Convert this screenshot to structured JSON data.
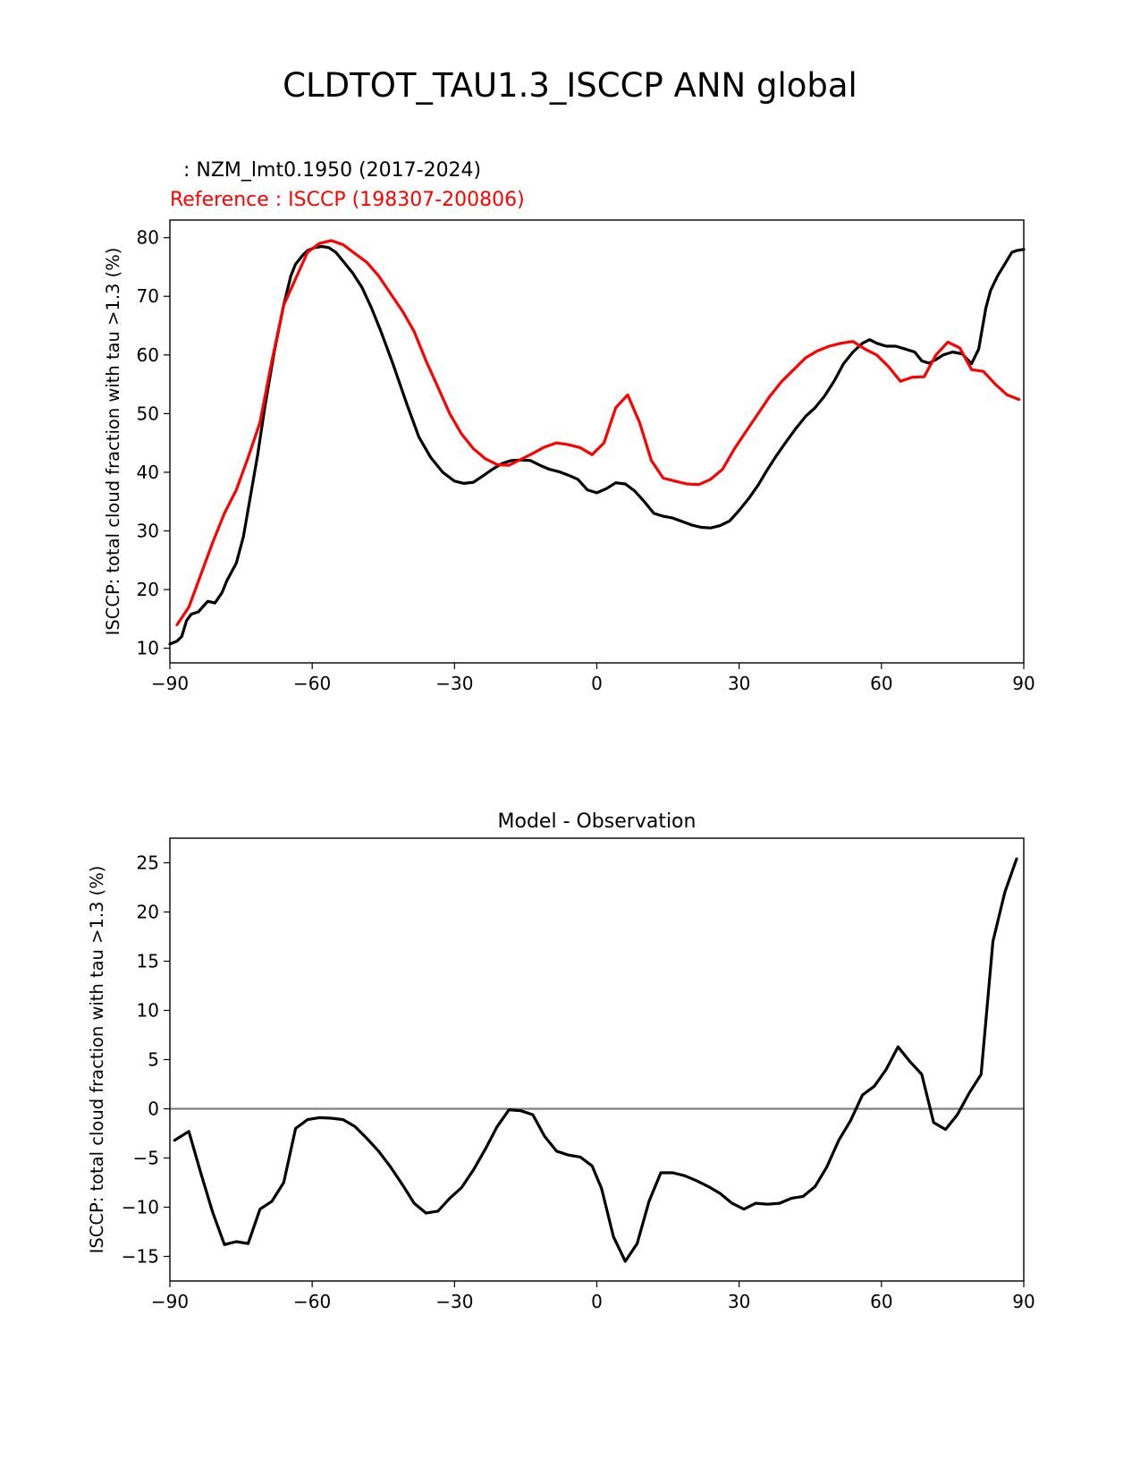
{
  "figure": {
    "suptitle": "CLDTOT_TAU1.3_ISCCP ANN global"
  },
  "chart_data": [
    {
      "type": "line",
      "title_test": ": NZM_lmt0.1950 (2017-2024)",
      "title_ref": "Reference : ISCCP (198307-200806)",
      "xlabel": "",
      "ylabel": "ISCCP: total cloud fraction with tau >1.3 (%)",
      "xlim": [
        -90,
        90
      ],
      "ylim": [
        7.5,
        83
      ],
      "xticks": [
        -90,
        -60,
        -30,
        0,
        30,
        60,
        90
      ],
      "xtick_labels": [
        "−90",
        "−60",
        "−30",
        "0",
        "30",
        "60",
        "90"
      ],
      "yticks": [
        10,
        20,
        30,
        40,
        50,
        60,
        70,
        80
      ],
      "ytick_labels": [
        "10",
        "20",
        "30",
        "40",
        "50",
        "60",
        "70",
        "80"
      ],
      "colors": {
        "test": "#000000",
        "ref": "#ff0000"
      },
      "series": [
        {
          "name": "test",
          "x": [
            -90,
            -88.5,
            -87.5,
            -86.5,
            -85.5,
            -84,
            -82,
            -80.5,
            -79,
            -78,
            -76,
            -74.5,
            -73,
            -71.5,
            -70,
            -68,
            -66,
            -64.5,
            -63.5,
            -62,
            -61,
            -59.5,
            -58,
            -56.5,
            -55,
            -53.5,
            -51.5,
            -49.5,
            -47.5,
            -45.5,
            -43,
            -40,
            -37.5,
            -35,
            -32.5,
            -30,
            -28,
            -26,
            -24,
            -22,
            -20,
            -18,
            -16,
            -14,
            -12,
            -10,
            -8,
            -6,
            -4,
            -2,
            0,
            2,
            4,
            6,
            8,
            10,
            12,
            14,
            16,
            18,
            20,
            22,
            24,
            26,
            28,
            30,
            32,
            34,
            36,
            38,
            40,
            42,
            44,
            46,
            48,
            50,
            52,
            54,
            56,
            57.5,
            59,
            61,
            63,
            65,
            67,
            68.5,
            70,
            71.5,
            73,
            75,
            77,
            79,
            80.5,
            82,
            83,
            84.5,
            86,
            87.5,
            88.5,
            90
          ],
          "y": [
            10.7,
            11.2,
            12,
            14.7,
            15.8,
            16.2,
            18,
            17.7,
            19.5,
            21.5,
            24.5,
            29,
            36,
            43,
            51,
            60.5,
            68.5,
            73.5,
            75.5,
            77,
            77.8,
            78.3,
            78.5,
            78.3,
            77.5,
            76,
            74,
            71.5,
            68,
            64,
            58.5,
            51.5,
            46,
            42.5,
            40,
            38.5,
            38.1,
            38.3,
            39.4,
            40.5,
            41.5,
            42,
            42.1,
            42,
            41.2,
            40.5,
            40.1,
            39.5,
            38.8,
            37,
            36.5,
            37.2,
            38.2,
            38,
            36.8,
            35,
            33,
            32.5,
            32.2,
            31.6,
            31,
            30.6,
            30.5,
            30.9,
            31.7,
            33.5,
            35.5,
            37.8,
            40.5,
            43,
            45.3,
            47.5,
            49.5,
            51,
            53,
            55.5,
            58.5,
            60.5,
            62,
            62.6,
            62,
            61.5,
            61.5,
            61,
            60.5,
            59,
            58.6,
            59.2,
            60,
            60.5,
            60.2,
            58.5,
            61,
            68,
            71,
            73.5,
            75.5,
            77.5,
            77.8,
            78
          ]
        },
        {
          "name": "ref",
          "x": [
            -88.5,
            -86,
            -83.5,
            -81,
            -78.5,
            -76,
            -73.5,
            -71,
            -68.5,
            -66,
            -63.5,
            -61,
            -58.5,
            -56,
            -53.5,
            -51,
            -48.5,
            -46,
            -43.5,
            -41,
            -38.5,
            -36,
            -33.5,
            -31,
            -28.5,
            -26,
            -23.5,
            -21,
            -18.5,
            -16,
            -13.5,
            -11,
            -8.5,
            -6,
            -3.5,
            -1,
            1.5,
            4,
            6.5,
            9,
            11.5,
            14,
            16.5,
            19,
            21.5,
            24,
            26.5,
            29,
            31.5,
            34,
            36.5,
            39,
            41.5,
            44,
            46.5,
            49,
            51.5,
            54,
            56.5,
            59,
            61.5,
            64,
            66.5,
            69,
            71.5,
            74,
            76.5,
            79,
            81.5,
            84,
            86.5,
            89
          ],
          "y": [
            14,
            17,
            22.5,
            28,
            33,
            37,
            42.5,
            48.5,
            59,
            68.5,
            73,
            77.5,
            79,
            79.5,
            78.8,
            77.3,
            75.8,
            73.5,
            70.5,
            67.5,
            64,
            59,
            54.5,
            50,
            46.5,
            44,
            42.3,
            41.3,
            41.2,
            42.2,
            43.2,
            44.3,
            45,
            44.7,
            44.2,
            43,
            45,
            51,
            53.2,
            48.5,
            42,
            39,
            38.5,
            38,
            37.9,
            38.8,
            40.5,
            44,
            47,
            50,
            53,
            55.5,
            57.5,
            59.5,
            60.7,
            61.5,
            62,
            62.3,
            61,
            60,
            58,
            55.5,
            56.2,
            56.3,
            60,
            62.2,
            61.2,
            57.5,
            57.2,
            55,
            53.2,
            52.4
          ]
        }
      ]
    },
    {
      "type": "line",
      "title": "Model - Observation",
      "xlabel": "",
      "ylabel": "ISCCP: total cloud fraction with tau >1.3 (%)",
      "xlim": [
        -90,
        90
      ],
      "ylim": [
        -17.5,
        27.5
      ],
      "xticks": [
        -90,
        -60,
        -30,
        0,
        30,
        60,
        90
      ],
      "xtick_labels": [
        "−90",
        "−60",
        "−30",
        "0",
        "30",
        "60",
        "90"
      ],
      "yticks": [
        -15,
        -10,
        -5,
        0,
        5,
        10,
        15,
        20,
        25
      ],
      "ytick_labels": [
        "−15",
        "−10",
        "−5",
        "0",
        "5",
        "10",
        "15",
        "20",
        "25"
      ],
      "zero_line_color": "#808080",
      "series": [
        {
          "name": "difference",
          "color": "#000000",
          "x": [
            -89,
            -86,
            -83.5,
            -81,
            -78.5,
            -76,
            -73.5,
            -71,
            -68.5,
            -66,
            -63.5,
            -61,
            -58.5,
            -56,
            -53.5,
            -51,
            -48.5,
            -46,
            -43.5,
            -41,
            -38.5,
            -36,
            -33.5,
            -31,
            -28.5,
            -26,
            -23.5,
            -21,
            -18.5,
            -16,
            -13.5,
            -11,
            -8.5,
            -6,
            -3.5,
            -1,
            1,
            3.5,
            6,
            8.5,
            11,
            13.5,
            16,
            18.5,
            21,
            23.5,
            26,
            28.5,
            31,
            33.5,
            36,
            38.5,
            41,
            43.5,
            46,
            48.5,
            51,
            53.5,
            56,
            58.5,
            61,
            63.5,
            66,
            68.5,
            71,
            73.5,
            76,
            78.5,
            81,
            83.5,
            86,
            88.5
          ],
          "y": [
            -3.2,
            -2.3,
            -6.5,
            -10.5,
            -13.8,
            -13.5,
            -13.7,
            -10.2,
            -9.4,
            -7.5,
            -2,
            -1.1,
            -0.9,
            -0.95,
            -1.1,
            -1.8,
            -3,
            -4.3,
            -5.9,
            -7.7,
            -9.6,
            -10.6,
            -10.4,
            -9.1,
            -8,
            -6.2,
            -4.1,
            -1.8,
            -0.1,
            -0.2,
            -0.6,
            -2.8,
            -4.3,
            -4.7,
            -4.9,
            -5.8,
            -8.1,
            -13,
            -15.5,
            -13.7,
            -9.4,
            -6.5,
            -6.5,
            -6.8,
            -7.3,
            -7.9,
            -8.6,
            -9.6,
            -10.2,
            -9.6,
            -9.7,
            -9.6,
            -9.1,
            -8.9,
            -7.9,
            -5.9,
            -3.2,
            -1.2,
            1.4,
            2.3,
            4,
            6.3,
            4.8,
            3.5,
            -1.4,
            -2.1,
            -0.6,
            1.6,
            3.5,
            17,
            22,
            25.4
          ]
        }
      ]
    }
  ]
}
